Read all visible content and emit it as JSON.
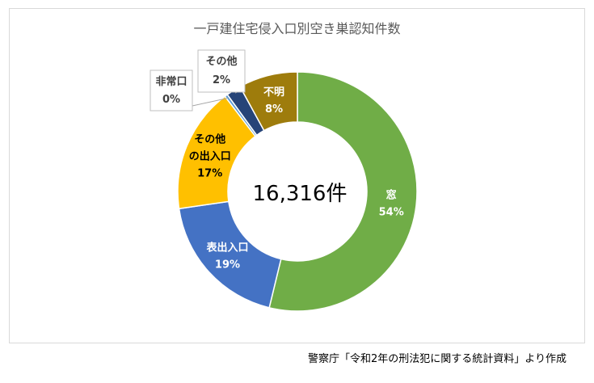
{
  "chart_data": {
    "type": "pie",
    "subtype": "donut",
    "title": "一戸建住宅侵入口別空き巣認知件数",
    "center_label": "16,316件",
    "source": "警察庁「令和2年の刑法犯に関する統計資料」より作成",
    "slices": [
      {
        "name": "窓",
        "value": 54,
        "value_label": "54%",
        "color": "#70ad47",
        "label_style": "inside-light"
      },
      {
        "name": "表出入口",
        "value": 19,
        "value_label": "19%",
        "color": "#4472c4",
        "label_style": "inside-light"
      },
      {
        "name": "その他の出入口",
        "name_lines": [
          "その他",
          "の出入口"
        ],
        "value": 17,
        "value_label": "17%",
        "color": "#ffc000",
        "label_style": "inside-dark"
      },
      {
        "name": "非常口",
        "value": 0.4,
        "value_label": "0%",
        "color": "#5b9bd5",
        "label_style": "callout"
      },
      {
        "name": "その他",
        "value": 2,
        "value_label": "2%",
        "color": "#264478",
        "label_style": "callout"
      },
      {
        "name": "不明",
        "value": 8,
        "value_label": "8%",
        "color": "#9e7c0c",
        "label_style": "inside-light"
      }
    ]
  }
}
